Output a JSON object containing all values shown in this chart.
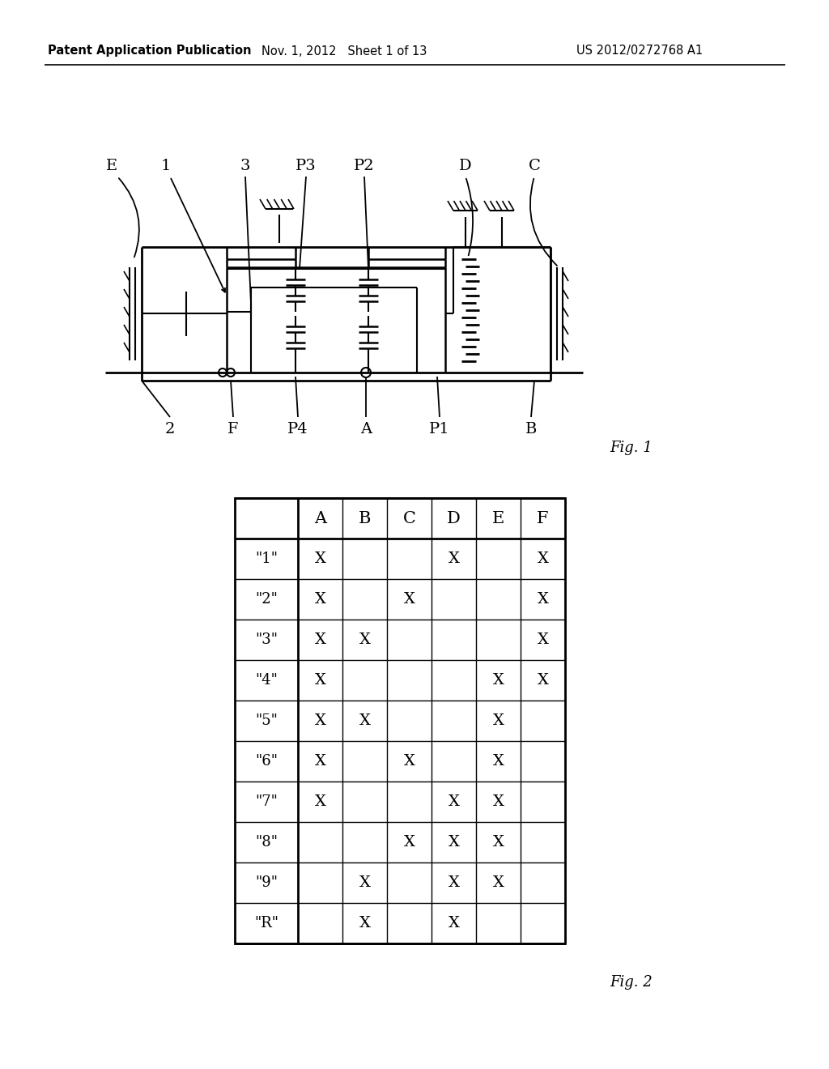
{
  "header_left": "Patent Application Publication",
  "header_mid": "Nov. 1, 2012   Sheet 1 of 13",
  "header_right": "US 2012/0272768 A1",
  "fig1_label": "Fig. 1",
  "fig2_label": "Fig. 2",
  "table_cols": [
    "A",
    "B",
    "C",
    "D",
    "E",
    "F"
  ],
  "table_data": [
    [
      1,
      0,
      0,
      1,
      0,
      1
    ],
    [
      1,
      0,
      1,
      0,
      0,
      1
    ],
    [
      1,
      1,
      0,
      0,
      0,
      1
    ],
    [
      1,
      0,
      0,
      0,
      1,
      1
    ],
    [
      1,
      1,
      0,
      0,
      1,
      0
    ],
    [
      1,
      0,
      1,
      0,
      1,
      0
    ],
    [
      1,
      0,
      0,
      1,
      1,
      0
    ],
    [
      0,
      0,
      1,
      1,
      1,
      0
    ],
    [
      0,
      1,
      0,
      1,
      1,
      0
    ],
    [
      0,
      1,
      0,
      1,
      0,
      0
    ]
  ],
  "bg_color": "#ffffff",
  "text_color": "#000000"
}
